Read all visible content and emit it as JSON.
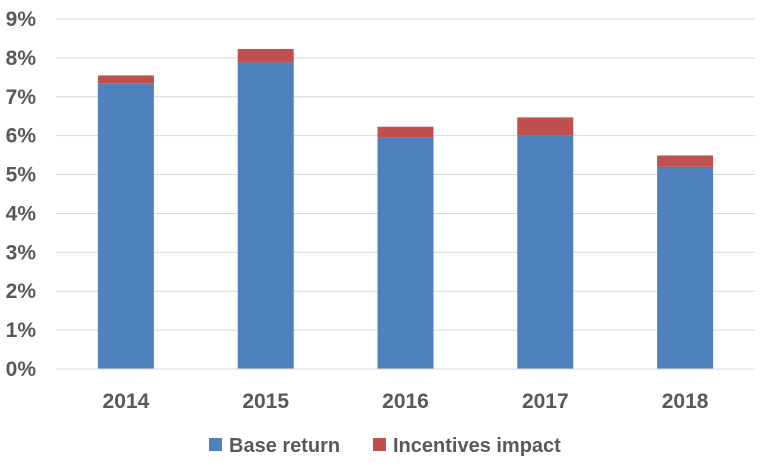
{
  "chart_data": {
    "type": "bar",
    "stacked": true,
    "categories": [
      "2014",
      "2015",
      "2016",
      "2017",
      "2018"
    ],
    "series": [
      {
        "name": "Base return",
        "values": [
          7.35,
          7.88,
          5.95,
          6.0,
          5.2
        ],
        "color": "#4F81BD"
      },
      {
        "name": "Incentives impact",
        "values": [
          0.2,
          0.35,
          0.28,
          0.47,
          0.29
        ],
        "color": "#C0504D"
      }
    ],
    "title": "",
    "xlabel": "",
    "ylabel": "",
    "ylim": [
      0,
      9
    ],
    "ytick_labels": [
      "0%",
      "1%",
      "2%",
      "3%",
      "4%",
      "5%",
      "6%",
      "7%",
      "8%",
      "9%"
    ],
    "grid": true,
    "legend_position": "bottom"
  }
}
